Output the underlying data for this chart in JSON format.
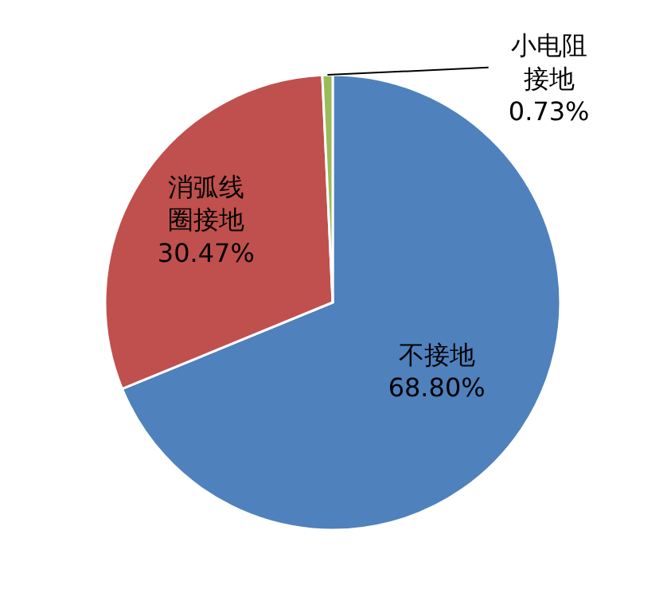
{
  "chart_data": {
    "type": "pie",
    "categories": [
      "不接地",
      "消弧线圈接地",
      "小电阻接地"
    ],
    "values": [
      68.8,
      30.47,
      0.73
    ],
    "value_labels": [
      "68.80%",
      "30.47%",
      "0.73%"
    ],
    "colors": [
      "#4f81bd",
      "#c0504d",
      "#9bbb59"
    ]
  }
}
